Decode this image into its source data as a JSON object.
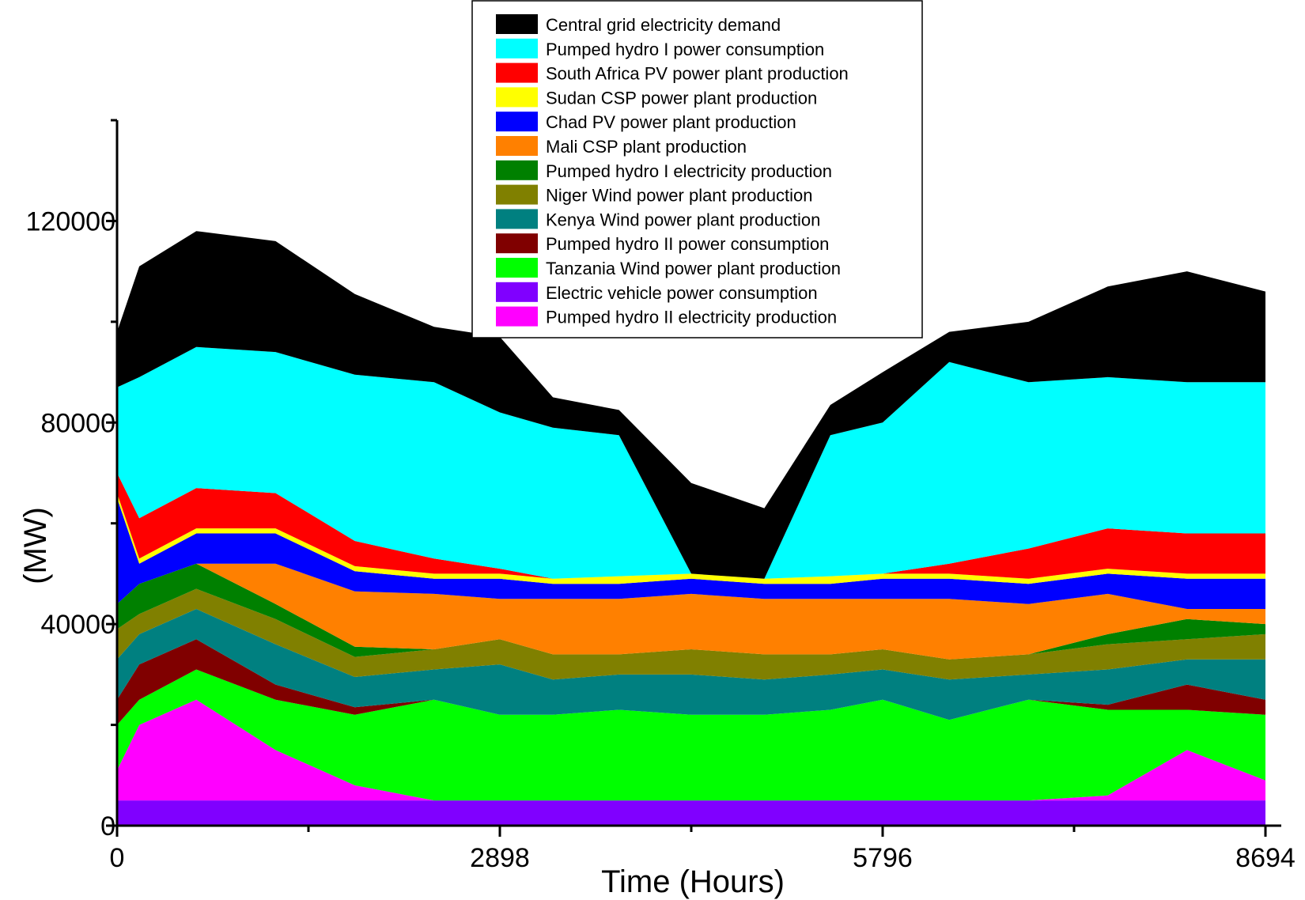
{
  "chart_data": {
    "type": "area",
    "stacked": true,
    "title": "",
    "xlabel": "Time (Hours)",
    "ylabel": "(MW)",
    "xlim": [
      0,
      8694
    ],
    "ylim": [
      0,
      140000
    ],
    "x_ticks": [
      0,
      2898,
      5796,
      8694
    ],
    "x_tick_labels": [
      "0",
      "2898",
      "5796",
      "8694"
    ],
    "x_minor_ticks": [
      1449,
      4347,
      7245
    ],
    "y_ticks": [
      0,
      40000,
      80000,
      120000
    ],
    "y_tick_labels": [
      "0",
      "40000",
      "80000",
      "120000"
    ],
    "y_minor_ticks": [
      20000,
      60000,
      100000,
      140000
    ],
    "legend_position": "top-center",
    "x": [
      0,
      168,
      600,
      1200,
      1800,
      2400,
      2898,
      3300,
      3800,
      4347,
      4900,
      5400,
      5796,
      6300,
      6900,
      7500,
      8100,
      8694
    ],
    "series": [
      {
        "name": "Electric vehicle power consumption",
        "color": "#8000ff",
        "values": [
          5000,
          5000,
          5000,
          5000,
          5000,
          5000,
          5000,
          5000,
          5000,
          5000,
          5000,
          5000,
          5000,
          5000,
          5000,
          5000,
          5000,
          5000
        ]
      },
      {
        "name": "Pumped hydro II electricity production",
        "color": "#ff00ff",
        "values": [
          6000,
          15000,
          20000,
          10000,
          3000,
          0,
          0,
          0,
          0,
          0,
          0,
          0,
          0,
          0,
          0,
          1000,
          10000,
          4000
        ]
      },
      {
        "name": "Tanzania Wind power plant production",
        "color": "#00ff00",
        "values": [
          9000,
          5000,
          6000,
          10000,
          14000,
          20000,
          17000,
          17000,
          18000,
          17000,
          17000,
          18000,
          20000,
          16000,
          20000,
          17000,
          8000,
          13000
        ]
      },
      {
        "name": "Pumped  hydro II power consumption",
        "color": "#800000",
        "values": [
          5000,
          7000,
          6000,
          3000,
          1500,
          0,
          0,
          0,
          0,
          0,
          0,
          0,
          0,
          0,
          0,
          1000,
          5000,
          3000
        ]
      },
      {
        "name": "Kenya Wind power plant production",
        "color": "#008080",
        "values": [
          8000,
          6000,
          6000,
          8000,
          6000,
          6000,
          10000,
          7000,
          7000,
          8000,
          7000,
          7000,
          6000,
          8000,
          5000,
          7000,
          5000,
          8000
        ]
      },
      {
        "name": "Niger Wind power plant production",
        "color": "#808000",
        "values": [
          6000,
          4000,
          4000,
          5000,
          4000,
          4000,
          5000,
          5000,
          4000,
          5000,
          5000,
          4000,
          4000,
          4000,
          4000,
          5000,
          4000,
          5000
        ]
      },
      {
        "name": "Pumped hydro I electricity production",
        "color": "#008000",
        "values": [
          5000,
          6000,
          5000,
          3000,
          2000,
          0,
          0,
          0,
          0,
          0,
          0,
          0,
          0,
          0,
          0,
          2000,
          4000,
          2000
        ]
      },
      {
        "name": "Mali CSP plant production",
        "color": "#ff8000",
        "values": [
          0,
          0,
          0,
          8000,
          11000,
          11000,
          8000,
          11000,
          11000,
          11000,
          11000,
          11000,
          10000,
          12000,
          10000,
          8000,
          2000,
          3000
        ]
      },
      {
        "name": "Chad PV power plant production",
        "color": "#0000ff",
        "values": [
          21000,
          4000,
          6000,
          6000,
          4000,
          3000,
          4000,
          3000,
          3000,
          3000,
          3000,
          3000,
          4000,
          4000,
          4000,
          4000,
          6000,
          6000
        ]
      },
      {
        "name": "Sudan CSP power plant production",
        "color": "#ffff00",
        "values": [
          1000,
          1000,
          1000,
          1000,
          1000,
          1000,
          1000,
          1000,
          1500,
          1000,
          1000,
          1500,
          1000,
          1000,
          1000,
          1000,
          1000,
          1000
        ]
      },
      {
        "name": "South Africa PV power plant production",
        "color": "#ff0000",
        "values": [
          4000,
          8000,
          8000,
          7000,
          5000,
          3000,
          1000,
          0,
          0,
          0,
          0,
          0,
          0,
          2000,
          6000,
          8000,
          8000,
          8000
        ]
      },
      {
        "name": "Pumped  hydro I power consumption",
        "color": "#00ffff",
        "values": [
          17000,
          28000,
          28000,
          28000,
          33000,
          35000,
          31000,
          30000,
          28000,
          0,
          0,
          28000,
          30000,
          40000,
          33000,
          30000,
          30000,
          30000
        ]
      },
      {
        "name": "Central grid electricity demand",
        "color": "#000000",
        "values": [
          11000,
          22000,
          23000,
          22000,
          16000,
          11000,
          15000,
          6000,
          5000,
          18000,
          14000,
          6000,
          10000,
          6000,
          12000,
          18000,
          22000,
          18000
        ]
      }
    ],
    "legend": [
      {
        "label": "Central grid electricity demand",
        "color": "#000000"
      },
      {
        "label": "Pumped  hydro I power consumption",
        "color": "#00ffff"
      },
      {
        "label": "South Africa PV power plant production",
        "color": "#ff0000"
      },
      {
        "label": "Sudan CSP power plant production",
        "color": "#ffff00"
      },
      {
        "label": "Chad PV power plant production",
        "color": "#0000ff"
      },
      {
        "label": "Mali CSP plant production",
        "color": "#ff8000"
      },
      {
        "label": "Pumped hydro I electricity production",
        "color": "#008000"
      },
      {
        "label": "Niger Wind power plant production",
        "color": "#808000"
      },
      {
        "label": "Kenya Wind power plant production",
        "color": "#008080"
      },
      {
        "label": "Pumped  hydro II power consumption",
        "color": "#800000"
      },
      {
        "label": "Tanzania Wind power plant production",
        "color": "#00ff00"
      },
      {
        "label": "Electric vehicle power consumption",
        "color": "#8000ff"
      },
      {
        "label": "Pumped hydro II electricity production",
        "color": "#ff00ff"
      }
    ]
  }
}
